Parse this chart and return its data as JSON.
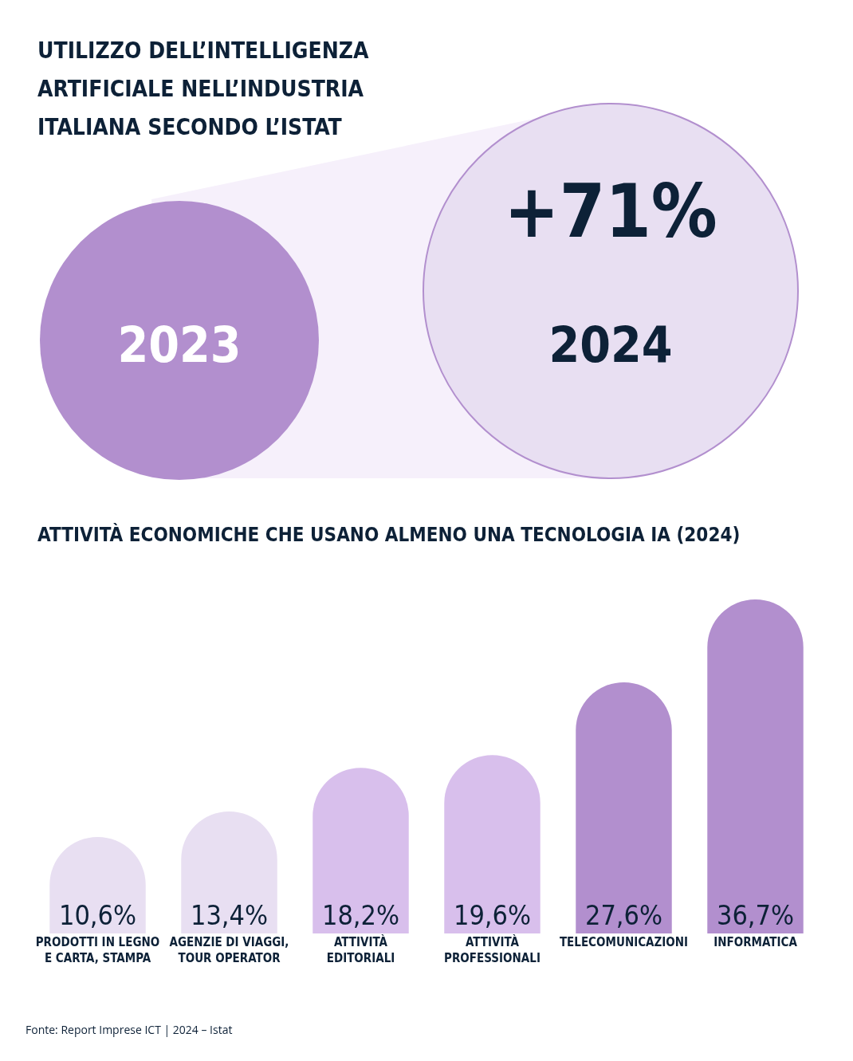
{
  "chart_data": [
    {
      "type": "other",
      "title": "UTILIZZO DELL’INTELLIGENZA ARTIFICIALE NELL’INDUSTRIA ITALIANA SECONDO L’ISTAT",
      "annotations": [
        "+71%",
        "2023",
        "2024"
      ]
    },
    {
      "type": "bar",
      "title": "ATTIVITÀ ECONOMICHE CHE USANO ALMENO UNA TECNOLOGIA IA (2024)",
      "categories": [
        "PRODOTTI IN LEGNO\nE CARTA, STAMPA",
        "AGENZIE DI VIAGGI,\nTOUR OPERATOR",
        "ATTIVITÀ\nEDITORIALI",
        "ATTIVITÀ\nPROFESSIONALI",
        "TELECOMUNICAZIONI",
        "INFORMATICA"
      ],
      "values": [
        10.6,
        13.4,
        18.2,
        19.6,
        27.6,
        36.7
      ],
      "value_labels": [
        "10,6%",
        "13,4%",
        "18,2%",
        "19,6%",
        "27,6%",
        "36,7%"
      ],
      "colors": [
        "#e8dff2",
        "#e8dff2",
        "#d8bfec",
        "#d8bfec",
        "#b28fce",
        "#b28fce"
      ],
      "annotations": [
        "Fonte: Report Imprese ICT | 2024 – Istat"
      ]
    }
  ]
}
